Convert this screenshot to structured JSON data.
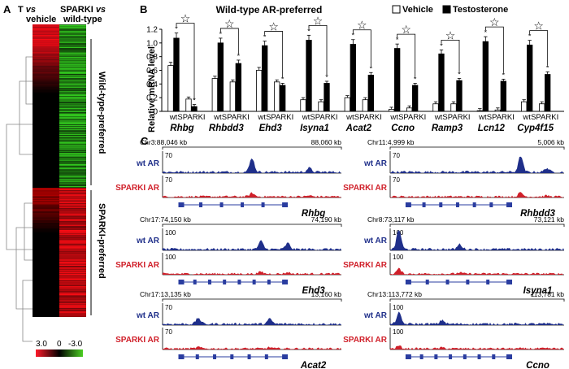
{
  "panel_a": {
    "label": "A",
    "col1": "T vs vehicle",
    "col1_parts": [
      "T ",
      "vs",
      " vehicle"
    ],
    "col2_parts": [
      "SPARKI ",
      "vs",
      " wild-type"
    ],
    "group_top": "Wild-type-preferred",
    "group_bottom": "SPARKI-preferred",
    "scale_labels": [
      "3.0",
      "0",
      "-3.0"
    ],
    "colors": {
      "red": "#e8102a",
      "green": "#3fbf1f",
      "black": "#000000"
    }
  },
  "panel_b": {
    "label": "B",
    "title": "Wild-type AR-preferred",
    "legend": [
      {
        "label": "Vehicle",
        "color": "#ffffff"
      },
      {
        "label": "Testosterone",
        "color": "#000000"
      }
    ]
  },
  "chart_data": {
    "type": "bar",
    "title": "Wild-type AR-preferred",
    "ylabel": "Relative mRNA level",
    "ylim": [
      0,
      1.2
    ],
    "yticks": [
      "0",
      "0.2",
      "0.4",
      "0.6",
      "0.8",
      "1.0",
      "1.2"
    ],
    "groups": [
      "wt",
      "SPARKI"
    ],
    "series": [
      {
        "name": "Vehicle",
        "color": "#ffffff"
      },
      {
        "name": "Testosterone",
        "color": "#000000"
      }
    ],
    "genes": [
      {
        "name": "Rhbg",
        "wt": [
          0.67,
          1.07
        ],
        "sparki": [
          0.18,
          0.07
        ]
      },
      {
        "name": "Rhbdd3",
        "wt": [
          0.48,
          1.0
        ],
        "sparki": [
          0.43,
          0.7
        ]
      },
      {
        "name": "Ehd3",
        "wt": [
          0.6,
          0.96
        ],
        "sparki": [
          0.43,
          0.38
        ]
      },
      {
        "name": "Isyna1",
        "wt": [
          0.17,
          1.04
        ],
        "sparki": [
          0.14,
          0.41
        ]
      },
      {
        "name": "Acat2",
        "wt": [
          0.2,
          0.98
        ],
        "sparki": [
          0.17,
          0.53
        ]
      },
      {
        "name": "Ccno",
        "wt": [
          0.03,
          0.92
        ],
        "sparki": [
          0.05,
          0.38
        ]
      },
      {
        "name": "Ramp3",
        "wt": [
          0.11,
          0.84
        ],
        "sparki": [
          0.11,
          0.45
        ]
      },
      {
        "name": "Lcn12",
        "wt": [
          0.01,
          1.02
        ],
        "sparki": [
          0.02,
          0.44
        ]
      },
      {
        "name": "Cyp4f15",
        "wt": [
          0.14,
          0.97
        ],
        "sparki": [
          0.11,
          0.54
        ]
      }
    ]
  },
  "panel_c": {
    "label": "C",
    "track_labels": {
      "wt": "wt AR",
      "sparki": "SPARKI AR"
    },
    "track_colors": {
      "wt": "#1f2f8a",
      "sparki": "#d0202a"
    },
    "tracks": [
      {
        "gene": "Rhbg",
        "start": "Chr3:88,046 kb",
        "end": "88,060 kb",
        "scale": "70"
      },
      {
        "gene": "Rhbdd3",
        "start": "Chr11:4,999 kb",
        "end": "5,006 kb",
        "scale": "70"
      },
      {
        "gene": "Ehd3",
        "start": "Chr17:74,150 kb",
        "end": "74,190 kb",
        "scale": "100"
      },
      {
        "gene": "Isyna1",
        "start": "Chr8:73,117 kb",
        "end": "73,121 kb",
        "scale": "100"
      },
      {
        "gene": "Acat2",
        "start": "Chr17:13,135 kb",
        "end": "13,160 kb",
        "scale": "70"
      },
      {
        "gene": "Ccno",
        "start": "Chr13:113,772 kb",
        "end": "113,781 kb",
        "scale": "100"
      }
    ]
  }
}
